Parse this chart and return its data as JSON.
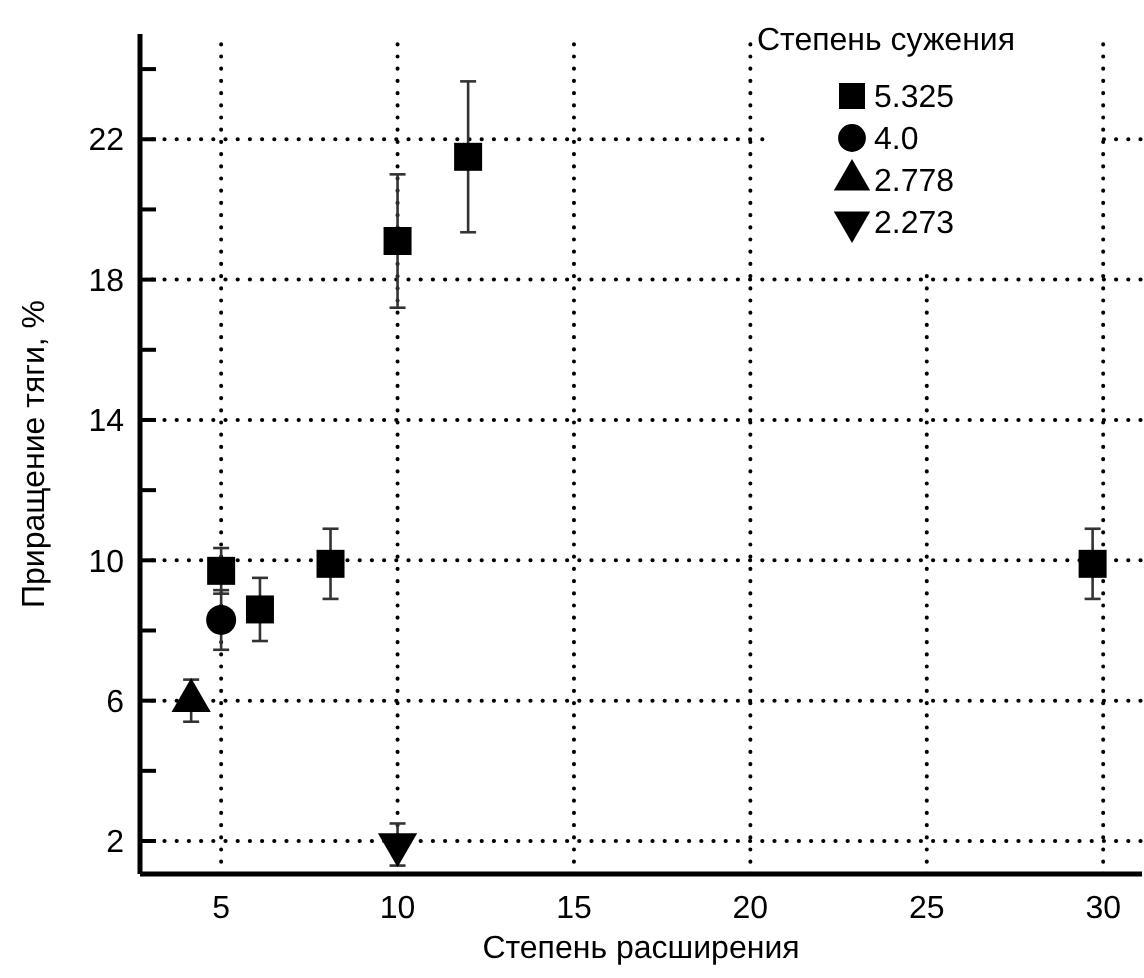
{
  "chart_data": {
    "type": "scatter",
    "xlabel": "Степень расширения",
    "ylabel": "Приращение тяги, %",
    "legend_title": "Степень сужения",
    "xlim": [
      2.7,
      31.1
    ],
    "ylim": [
      1.06,
      25
    ],
    "xticks": [
      5,
      10,
      15,
      20,
      25,
      30
    ],
    "yticks": [
      2,
      {
        "value": 4,
        "label": null
      },
      6,
      {
        "value": 8,
        "label": null
      },
      10,
      {
        "value": 12,
        "label": null
      },
      14,
      {
        "value": 16,
        "label": null
      },
      18,
      {
        "value": 20,
        "label": null
      },
      22,
      {
        "value": 24,
        "label": null
      }
    ],
    "grid": true,
    "legend": "top right",
    "series": [
      {
        "name": "5.325",
        "color": "#000000",
        "marker": "square",
        "x": [
          5,
          6.1,
          8.1,
          10,
          12,
          29.7
        ],
        "values": [
          9.7,
          8.6,
          9.9,
          19.1,
          21.5,
          9.9
        ],
        "errors": [
          0.65,
          0.9,
          1,
          1.9,
          2.15,
          1
        ]
      },
      {
        "name": "4.0",
        "color": "#000000",
        "marker": "circle",
        "x": [
          5
        ],
        "values": [
          8.3
        ],
        "errors": [
          0.85
        ]
      },
      {
        "name": "2.778",
        "color": "#000000",
        "marker": "triangle",
        "x": [
          4.15
        ],
        "values": [
          6
        ],
        "errors": [
          0.6
        ]
      },
      {
        "name": "2.273",
        "color": "#000000",
        "marker": "triangle-down",
        "x": [
          10
        ],
        "values": [
          1.9
        ],
        "errors": [
          0.6
        ]
      }
    ]
  }
}
